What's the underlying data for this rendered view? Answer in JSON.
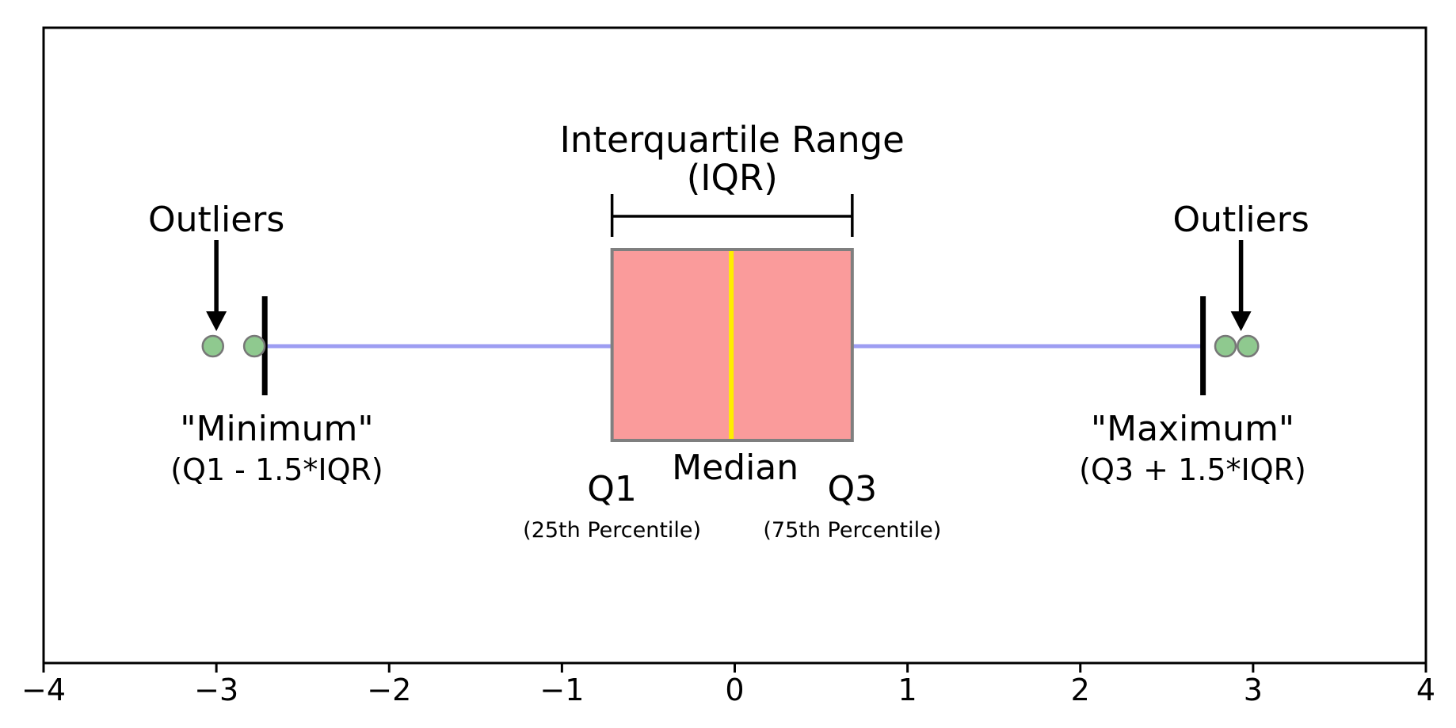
{
  "figure": {
    "background": "#ffffff",
    "frame_color": "#000000"
  },
  "chart_data": {
    "type": "boxplot",
    "orientation": "horizontal",
    "title": "",
    "xlabel": "",
    "ylabel": "",
    "xlim": [
      -4,
      4
    ],
    "grid": false,
    "x_ticks": [
      {
        "value": -4,
        "label": "−4"
      },
      {
        "value": -3,
        "label": "−3"
      },
      {
        "value": -2,
        "label": "−2"
      },
      {
        "value": -1,
        "label": "−1"
      },
      {
        "value": 0,
        "label": "0"
      },
      {
        "value": 1,
        "label": "1"
      },
      {
        "value": 2,
        "label": "2"
      },
      {
        "value": 3,
        "label": "3"
      },
      {
        "value": 4,
        "label": "4"
      }
    ],
    "box": {
      "q1": -0.71,
      "median": -0.02,
      "q3": 0.68,
      "whisker_low": -2.72,
      "whisker_high": 2.71,
      "outliers": [
        -3.02,
        -2.78,
        2.84,
        2.97
      ]
    },
    "colors": {
      "box_face": "#fa9b9b",
      "box_edge": "#7f7f7f",
      "median_line": "#ffee00",
      "whisker": "#9d9df2",
      "cap": "#000000",
      "outlier_fill": "#8fc98f",
      "outlier_edge": "#777777",
      "frame": "#000000",
      "text": "#000000"
    },
    "annotations": {
      "iqr_title_line1": "Interquartile Range",
      "iqr_title_line2": "(IQR)",
      "outliers_left": {
        "label": "Outliers",
        "anchor_value": -3.0
      },
      "outliers_right": {
        "label": "Outliers",
        "anchor_value": 2.93
      },
      "minimum": {
        "line1": "\"Minimum\"",
        "line2": "(Q1 - 1.5*IQR)",
        "anchor_value": -2.65
      },
      "maximum": {
        "line1": "\"Maximum\"",
        "line2": "(Q3 + 1.5*IQR)",
        "anchor_value": 2.65
      },
      "q1": {
        "label": "Q1",
        "sub": "(25th Percentile)"
      },
      "median": {
        "label": "Median"
      },
      "q3": {
        "label": "Q3",
        "sub": "(75th Percentile)"
      }
    }
  }
}
